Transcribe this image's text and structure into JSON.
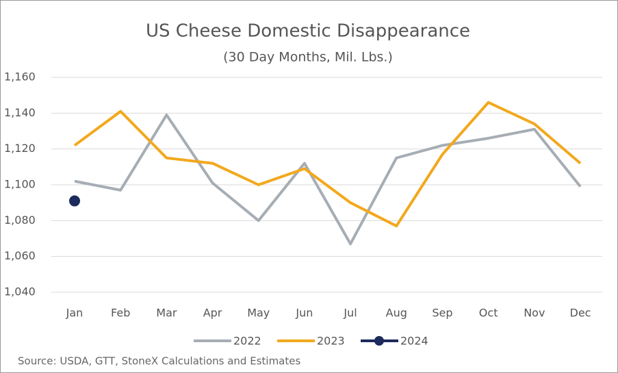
{
  "chart_data": {
    "type": "line",
    "title": "US Cheese Domestic Disappearance",
    "subtitle": "(30 Day Months, Mil. Lbs.)",
    "source": "Source: USDA, GTT, StoneX Calculations and Estimates",
    "categories": [
      "Jan",
      "Feb",
      "Mar",
      "Apr",
      "May",
      "Jun",
      "Jul",
      "Aug",
      "Sep",
      "Oct",
      "Nov",
      "Dec"
    ],
    "series": [
      {
        "name": "2022",
        "color": "#a6adb4",
        "values": [
          1102,
          1097,
          1139,
          1101,
          1080,
          1112,
          1067,
          1115,
          1122,
          1126,
          1131,
          1099
        ]
      },
      {
        "name": "2023",
        "color": "#f2a81d",
        "values": [
          1122,
          1141,
          1115,
          1112,
          1100,
          1109,
          1090,
          1077,
          1117,
          1146,
          1134,
          1112
        ]
      },
      {
        "name": "2024",
        "color": "#1c2a5c",
        "marker": "circle",
        "values": [
          1091,
          null,
          null,
          null,
          null,
          null,
          null,
          null,
          null,
          null,
          null,
          null
        ]
      }
    ],
    "ylim": [
      1040,
      1160
    ],
    "yticks": [
      {
        "value": 1040,
        "label": "1,040"
      },
      {
        "value": 1060,
        "label": "1,060"
      },
      {
        "value": 1080,
        "label": "1,080"
      },
      {
        "value": 1100,
        "label": "1,100"
      },
      {
        "value": 1120,
        "label": "1,120"
      },
      {
        "value": 1140,
        "label": "1,140"
      },
      {
        "value": 1160,
        "label": "1,160"
      }
    ],
    "grid": true,
    "legend": "bottom"
  }
}
